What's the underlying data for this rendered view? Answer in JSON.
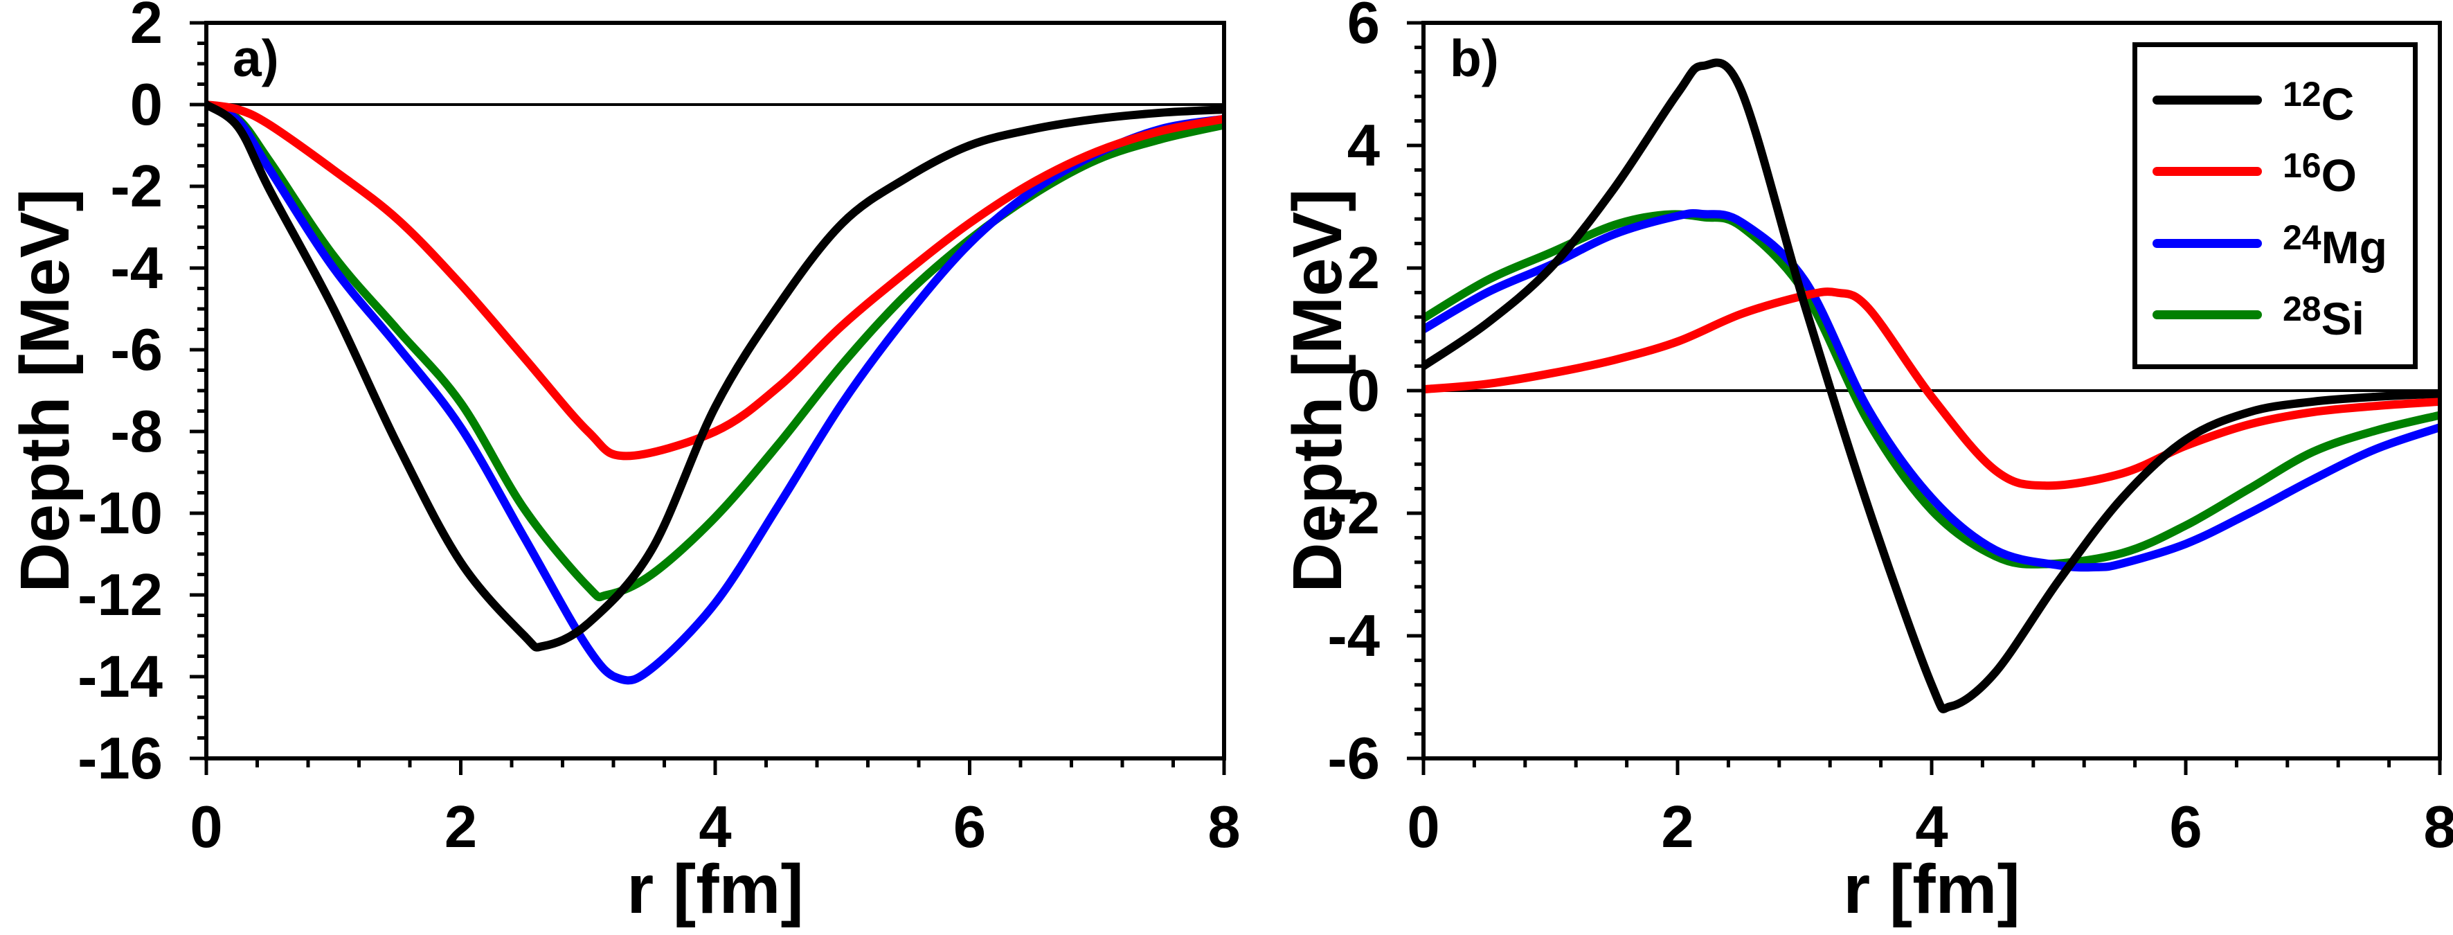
{
  "figure": {
    "panels": [
      {
        "id": "a",
        "tag": "a)",
        "x_axis": {
          "title": "r [fm]",
          "ticks": [
            "0",
            "2",
            "4",
            "6",
            "8"
          ],
          "minor_divisions": 5,
          "range": [
            0,
            8
          ]
        },
        "y_axis": {
          "title": "Depth [MeV]",
          "ticks": [
            "2",
            "0",
            "-2",
            "-4",
            "-6",
            "-8",
            "-10",
            "-12",
            "-14",
            "-16"
          ],
          "minor_divisions": 4,
          "range": [
            -16,
            2
          ]
        }
      },
      {
        "id": "b",
        "tag": "b)",
        "x_axis": {
          "title": "r [fm]",
          "ticks": [
            "0",
            "2",
            "4",
            "6",
            "8"
          ],
          "minor_divisions": 5,
          "range": [
            0,
            8
          ]
        },
        "y_axis": {
          "title": "Depth [MeV]",
          "ticks": [
            "6",
            "4",
            "2",
            "0",
            "-2",
            "-4",
            "-6"
          ],
          "minor_divisions": 5,
          "range": [
            -6,
            6
          ]
        }
      }
    ],
    "legend": {
      "position": "top-right-panel-b",
      "entries": [
        {
          "mass": "12",
          "symbol": "C",
          "color": "#000000"
        },
        {
          "mass": "16",
          "symbol": "O",
          "color": "#FF0000"
        },
        {
          "mass": "24",
          "symbol": "Mg",
          "color": "#0000FF"
        },
        {
          "mass": "28",
          "symbol": "Si",
          "color": "#008000"
        }
      ]
    },
    "colors": {
      "frame": "#000000",
      "zero_line": "#000000",
      "background": "#FFFFFF"
    }
  },
  "chart_data": [
    {
      "type": "line",
      "title": "a)",
      "xlabel": "r [fm]",
      "ylabel": "Depth [MeV]",
      "xlim": [
        0,
        8
      ],
      "ylim": [
        -16,
        2
      ],
      "x_minor_step": 0.4,
      "y_minor_step": 0.5,
      "grid": false,
      "series": [
        {
          "name": "12C",
          "color": "#000000",
          "points": [
            [
              0,
              0
            ],
            [
              0.25,
              -0.55
            ],
            [
              0.5,
              -2.1
            ],
            [
              1,
              -5.0
            ],
            [
              1.5,
              -8.3
            ],
            [
              2,
              -11.2
            ],
            [
              2.5,
              -13.0
            ],
            [
              2.65,
              -13.25
            ],
            [
              3,
              -12.7
            ],
            [
              3.5,
              -10.9
            ],
            [
              4,
              -7.4
            ],
            [
              4.5,
              -4.9
            ],
            [
              5,
              -2.9
            ],
            [
              5.5,
              -1.8
            ],
            [
              6,
              -1.0
            ],
            [
              6.5,
              -0.6
            ],
            [
              7,
              -0.35
            ],
            [
              7.5,
              -0.2
            ],
            [
              8,
              -0.12
            ]
          ]
        },
        {
          "name": "16O",
          "color": "#FF0000",
          "points": [
            [
              0,
              0
            ],
            [
              0.25,
              -0.12
            ],
            [
              0.5,
              -0.5
            ],
            [
              1,
              -1.6
            ],
            [
              1.5,
              -2.8
            ],
            [
              2,
              -4.4
            ],
            [
              2.5,
              -6.2
            ],
            [
              3,
              -8.0
            ],
            [
              3.3,
              -8.6
            ],
            [
              4,
              -8.0
            ],
            [
              4.5,
              -6.9
            ],
            [
              5,
              -5.4
            ],
            [
              5.5,
              -4.1
            ],
            [
              6,
              -2.9
            ],
            [
              6.5,
              -1.9
            ],
            [
              7,
              -1.15
            ],
            [
              7.5,
              -0.65
            ],
            [
              8,
              -0.35
            ]
          ]
        },
        {
          "name": "24Mg",
          "color": "#0000FF",
          "points": [
            [
              0,
              0
            ],
            [
              0.25,
              -0.4
            ],
            [
              0.5,
              -1.6
            ],
            [
              1,
              -4.0
            ],
            [
              1.5,
              -5.9
            ],
            [
              2,
              -7.9
            ],
            [
              2.5,
              -10.6
            ],
            [
              3,
              -13.3
            ],
            [
              3.25,
              -14.05
            ],
            [
              3.5,
              -13.8
            ],
            [
              4,
              -12.2
            ],
            [
              4.5,
              -9.8
            ],
            [
              5,
              -7.3
            ],
            [
              5.5,
              -5.2
            ],
            [
              6,
              -3.4
            ],
            [
              6.5,
              -2.1
            ],
            [
              7,
              -1.2
            ],
            [
              7.5,
              -0.6
            ],
            [
              8,
              -0.35
            ]
          ]
        },
        {
          "name": "28Si",
          "color": "#008000",
          "points": [
            [
              0,
              0
            ],
            [
              0.25,
              -0.35
            ],
            [
              0.5,
              -1.4
            ],
            [
              1,
              -3.7
            ],
            [
              1.5,
              -5.5
            ],
            [
              2,
              -7.3
            ],
            [
              2.5,
              -9.9
            ],
            [
              3,
              -11.8
            ],
            [
              3.15,
              -12.0
            ],
            [
              3.5,
              -11.5
            ],
            [
              4,
              -10.1
            ],
            [
              4.5,
              -8.3
            ],
            [
              5,
              -6.35
            ],
            [
              5.5,
              -4.65
            ],
            [
              6,
              -3.3
            ],
            [
              6.5,
              -2.2
            ],
            [
              7,
              -1.35
            ],
            [
              7.5,
              -0.85
            ],
            [
              8,
              -0.5
            ]
          ]
        }
      ]
    },
    {
      "type": "line",
      "title": "b)",
      "xlabel": "r [fm]",
      "ylabel": "Depth [MeV]",
      "xlim": [
        0,
        8
      ],
      "ylim": [
        -6,
        6
      ],
      "x_minor_step": 0.4,
      "y_minor_step": 0.4,
      "grid": false,
      "legend_position": "top-right",
      "series": [
        {
          "name": "12C",
          "color": "#000000",
          "points": [
            [
              0,
              0.4
            ],
            [
              0.5,
              1.1
            ],
            [
              1,
              2.0
            ],
            [
              1.5,
              3.3
            ],
            [
              2,
              4.85
            ],
            [
              2.2,
              5.3
            ],
            [
              2.5,
              4.9
            ],
            [
              3,
              1.4
            ],
            [
              3.5,
              -1.9
            ],
            [
              4,
              -4.8
            ],
            [
              4.15,
              -5.15
            ],
            [
              4.5,
              -4.6
            ],
            [
              5,
              -3.1
            ],
            [
              5.5,
              -1.75
            ],
            [
              6,
              -0.8
            ],
            [
              6.5,
              -0.35
            ],
            [
              7,
              -0.18
            ],
            [
              7.5,
              -0.1
            ],
            [
              8,
              -0.05
            ]
          ]
        },
        {
          "name": "16O",
          "color": "#FF0000",
          "points": [
            [
              0,
              0.02
            ],
            [
              0.5,
              0.11
            ],
            [
              1,
              0.28
            ],
            [
              1.5,
              0.5
            ],
            [
              2,
              0.8
            ],
            [
              2.5,
              1.25
            ],
            [
              3,
              1.55
            ],
            [
              3.25,
              1.6
            ],
            [
              3.5,
              1.35
            ],
            [
              4,
              -0.1
            ],
            [
              4.5,
              -1.3
            ],
            [
              4.9,
              -1.55
            ],
            [
              5.5,
              -1.35
            ],
            [
              6,
              -0.9
            ],
            [
              6.5,
              -0.55
            ],
            [
              7,
              -0.35
            ],
            [
              7.5,
              -0.25
            ],
            [
              8,
              -0.18
            ]
          ]
        },
        {
          "name": "24Mg",
          "color": "#0000FF",
          "points": [
            [
              0,
              1.0
            ],
            [
              0.5,
              1.6
            ],
            [
              1,
              2.05
            ],
            [
              1.5,
              2.55
            ],
            [
              2,
              2.85
            ],
            [
              2.2,
              2.88
            ],
            [
              2.5,
              2.75
            ],
            [
              3,
              1.8
            ],
            [
              3.5,
              -0.3
            ],
            [
              4,
              -1.75
            ],
            [
              4.5,
              -2.6
            ],
            [
              5,
              -2.85
            ],
            [
              5.3,
              -2.88
            ],
            [
              5.5,
              -2.82
            ],
            [
              6,
              -2.5
            ],
            [
              6.5,
              -2.0
            ],
            [
              7,
              -1.45
            ],
            [
              7.5,
              -0.95
            ],
            [
              8,
              -0.6
            ]
          ]
        },
        {
          "name": "28Si",
          "color": "#008000",
          "points": [
            [
              0,
              1.18
            ],
            [
              0.5,
              1.8
            ],
            [
              1,
              2.25
            ],
            [
              1.5,
              2.7
            ],
            [
              1.9,
              2.87
            ],
            [
              2.2,
              2.83
            ],
            [
              2.5,
              2.68
            ],
            [
              3,
              1.6
            ],
            [
              3.5,
              -0.5
            ],
            [
              4,
              -1.95
            ],
            [
              4.5,
              -2.7
            ],
            [
              4.9,
              -2.83
            ],
            [
              5.5,
              -2.65
            ],
            [
              6,
              -2.2
            ],
            [
              6.5,
              -1.6
            ],
            [
              7,
              -1.0
            ],
            [
              7.5,
              -0.65
            ],
            [
              8,
              -0.4
            ]
          ]
        }
      ]
    }
  ]
}
